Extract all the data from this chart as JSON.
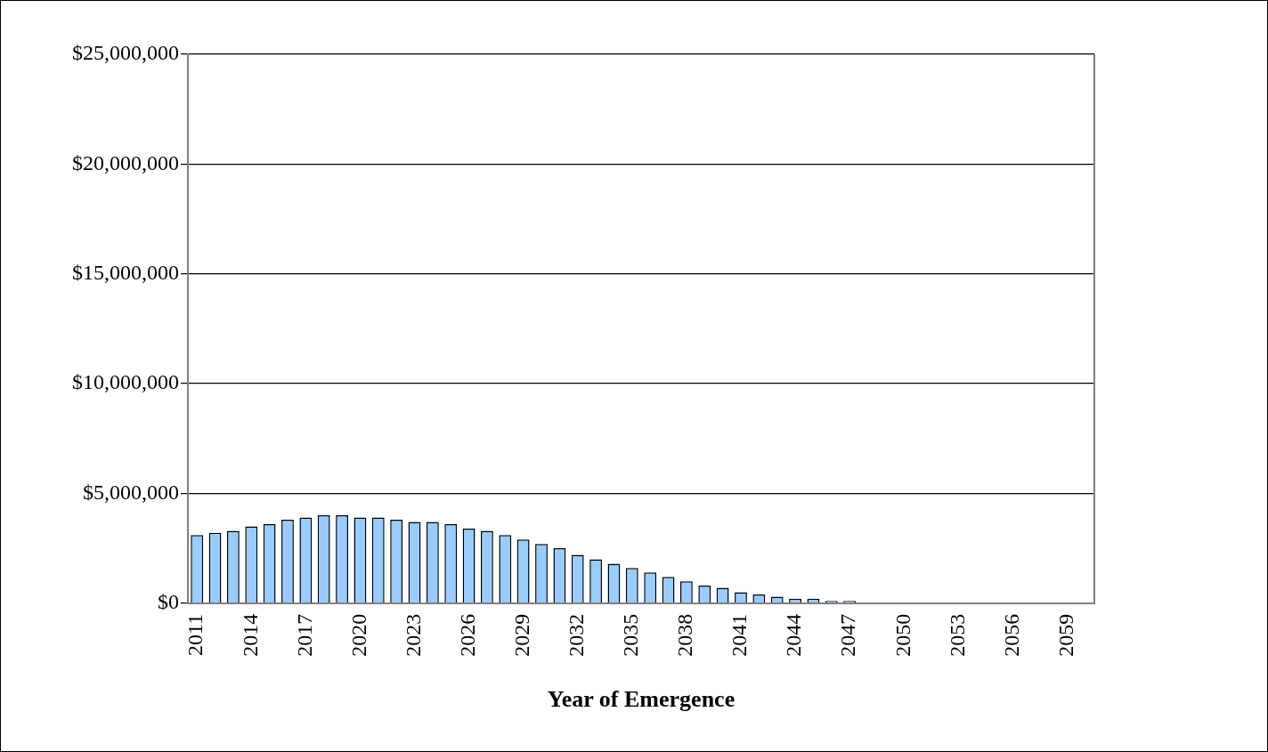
{
  "chart_data": {
    "type": "bar",
    "xlabel": "Year of Emergence",
    "categories": [
      "2011",
      null,
      null,
      "2014",
      null,
      null,
      "2017",
      null,
      null,
      "2020",
      null,
      null,
      "2023",
      null,
      null,
      "2026",
      null,
      null,
      "2029",
      null,
      null,
      "2032",
      null,
      null,
      "2035",
      null,
      null,
      "2038",
      null,
      null,
      "2041",
      null,
      null,
      "2044",
      null,
      null,
      "2047",
      null,
      null,
      "2050",
      null,
      null,
      "2053",
      null,
      null,
      "2056",
      null,
      null,
      "2059",
      null
    ],
    "values": [
      3100000,
      3200000,
      3300000,
      3500000,
      3600000,
      3800000,
      3900000,
      4000000,
      4000000,
      3900000,
      3900000,
      3800000,
      3700000,
      3700000,
      3600000,
      3400000,
      3300000,
      3100000,
      2900000,
      2700000,
      2500000,
      2200000,
      2000000,
      1800000,
      1600000,
      1400000,
      1200000,
      1000000,
      800000,
      700000,
      500000,
      400000,
      300000,
      200000,
      200000,
      100000,
      100000,
      0,
      0,
      0,
      0,
      0,
      0,
      0,
      0,
      0,
      0,
      0,
      0,
      0
    ],
    "color": "#99ccff",
    "ylim": [
      0,
      25000000
    ],
    "yticks": [
      {
        "value": 0,
        "label": "$0"
      },
      {
        "value": 5000000,
        "label": "$5,000,000"
      },
      {
        "value": 10000000,
        "label": "$10,000,000"
      },
      {
        "value": 15000000,
        "label": "$15,000,000"
      },
      {
        "value": 20000000,
        "label": "$20,000,000"
      },
      {
        "value": 25000000,
        "label": "$25,000,000"
      }
    ],
    "grid": "y",
    "legend": false
  }
}
